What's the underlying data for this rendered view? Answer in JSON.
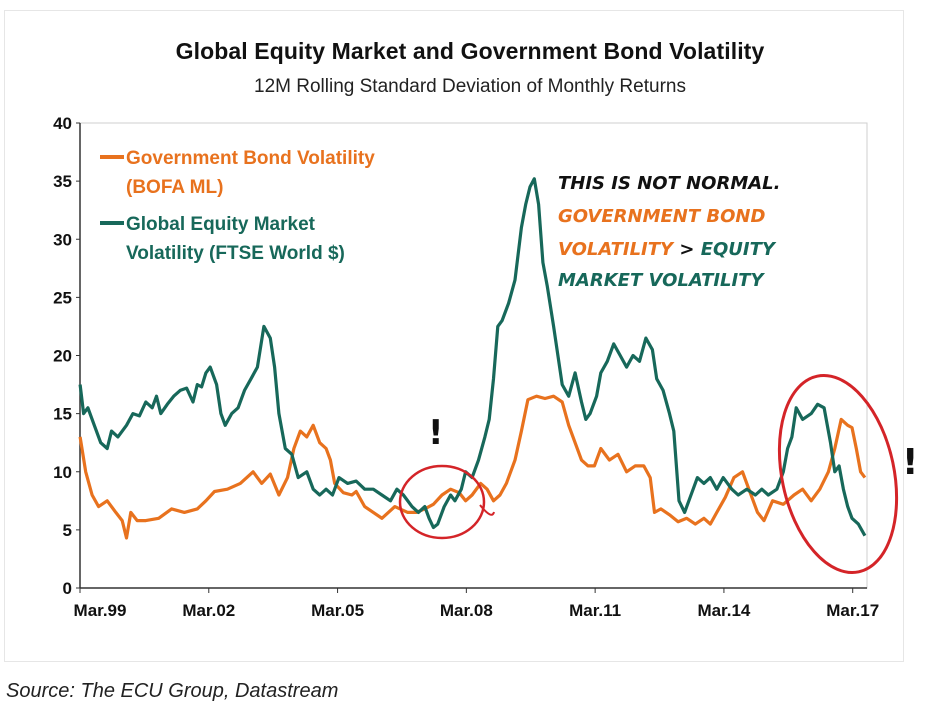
{
  "title": "Global Equity Market and Government Bond Volatility",
  "subtitle": "12M Rolling Standard Deviation of Monthly Returns",
  "source": "Source: The ECU Group,  Datastream",
  "colors": {
    "bond": "#e8721e",
    "equity": "#17685a",
    "annotation_red": "#d42428"
  },
  "legend": {
    "bond_line1": "Government Bond Volatility",
    "bond_line2": "(BOFA ML)",
    "equity_line1": "Global Equity Market",
    "equity_line2": "Volatility (FTSE World $)"
  },
  "annotation": {
    "line1": "THIS IS NOT NORMAL.",
    "line2": "GOVERNMENT BOND",
    "line3a": "VOLATILITY",
    "line3b": " > ",
    "line3c": "EQUITY",
    "line4": "MARKET VOLATILITY",
    "exclaim": "!"
  },
  "chart_data": {
    "type": "line",
    "x_tick_labels": [
      "Mar.99",
      "Mar.02",
      "Mar.05",
      "Mar.08",
      "Mar.11",
      "Mar.14",
      "Mar.17"
    ],
    "x_ticks": [
      1999.167,
      2002.167,
      2005.167,
      2008.167,
      2011.167,
      2014.167,
      2017.167
    ],
    "xlim": [
      1999.167,
      2017.5
    ],
    "ylim": [
      0,
      40
    ],
    "y_ticks": [
      0,
      5,
      10,
      15,
      20,
      25,
      30,
      35,
      40
    ],
    "grid": false,
    "legend_position": "top-left",
    "series": [
      {
        "name": "Government Bond Volatility (BOFA ML)",
        "key": "bond",
        "points": [
          [
            1999.17,
            13.0
          ],
          [
            1999.3,
            10.0
          ],
          [
            1999.45,
            8.0
          ],
          [
            1999.6,
            7.0
          ],
          [
            1999.8,
            7.5
          ],
          [
            2000.0,
            6.5
          ],
          [
            2000.15,
            5.8
          ],
          [
            2000.25,
            4.3
          ],
          [
            2000.35,
            6.5
          ],
          [
            2000.5,
            5.8
          ],
          [
            2000.7,
            5.8
          ],
          [
            2001.0,
            6.0
          ],
          [
            2001.3,
            6.8
          ],
          [
            2001.6,
            6.5
          ],
          [
            2001.9,
            6.8
          ],
          [
            2002.1,
            7.5
          ],
          [
            2002.3,
            8.3
          ],
          [
            2002.6,
            8.5
          ],
          [
            2002.9,
            9.0
          ],
          [
            2003.2,
            10.0
          ],
          [
            2003.4,
            9.0
          ],
          [
            2003.6,
            9.8
          ],
          [
            2003.8,
            8.0
          ],
          [
            2004.0,
            9.5
          ],
          [
            2004.15,
            12.0
          ],
          [
            2004.3,
            13.5
          ],
          [
            2004.45,
            13.0
          ],
          [
            2004.6,
            14.0
          ],
          [
            2004.75,
            12.5
          ],
          [
            2004.9,
            12.0
          ],
          [
            2005.0,
            11.0
          ],
          [
            2005.1,
            9.0
          ],
          [
            2005.3,
            8.2
          ],
          [
            2005.5,
            8.0
          ],
          [
            2005.6,
            8.3
          ],
          [
            2005.8,
            7.0
          ],
          [
            2006.0,
            6.5
          ],
          [
            2006.2,
            6.0
          ],
          [
            2006.5,
            7.0
          ],
          [
            2006.8,
            6.5
          ],
          [
            2007.0,
            6.5
          ],
          [
            2007.2,
            6.8
          ],
          [
            2007.4,
            7.2
          ],
          [
            2007.6,
            8.0
          ],
          [
            2007.8,
            8.5
          ],
          [
            2008.0,
            8.2
          ],
          [
            2008.15,
            7.5
          ],
          [
            2008.3,
            8.0
          ],
          [
            2008.5,
            9.0
          ],
          [
            2008.65,
            8.5
          ],
          [
            2008.8,
            7.5
          ],
          [
            2008.95,
            8.0
          ],
          [
            2009.1,
            9.0
          ],
          [
            2009.3,
            11.0
          ],
          [
            2009.45,
            13.5
          ],
          [
            2009.6,
            16.2
          ],
          [
            2009.8,
            16.5
          ],
          [
            2010.0,
            16.3
          ],
          [
            2010.2,
            16.5
          ],
          [
            2010.4,
            16.0
          ],
          [
            2010.55,
            14.0
          ],
          [
            2010.7,
            12.5
          ],
          [
            2010.85,
            11.0
          ],
          [
            2011.0,
            10.5
          ],
          [
            2011.15,
            10.5
          ],
          [
            2011.3,
            12.0
          ],
          [
            2011.5,
            11.0
          ],
          [
            2011.7,
            11.5
          ],
          [
            2011.9,
            10.0
          ],
          [
            2012.1,
            10.5
          ],
          [
            2012.3,
            10.5
          ],
          [
            2012.45,
            9.5
          ],
          [
            2012.55,
            6.5
          ],
          [
            2012.7,
            6.8
          ],
          [
            2012.9,
            6.3
          ],
          [
            2013.1,
            5.7
          ],
          [
            2013.3,
            6.0
          ],
          [
            2013.5,
            5.5
          ],
          [
            2013.7,
            6.0
          ],
          [
            2013.85,
            5.5
          ],
          [
            2014.0,
            6.5
          ],
          [
            2014.2,
            7.8
          ],
          [
            2014.4,
            9.5
          ],
          [
            2014.6,
            10.0
          ],
          [
            2014.75,
            8.5
          ],
          [
            2014.95,
            6.5
          ],
          [
            2015.1,
            5.8
          ],
          [
            2015.3,
            7.5
          ],
          [
            2015.55,
            7.2
          ],
          [
            2015.8,
            8.0
          ],
          [
            2016.0,
            8.5
          ],
          [
            2016.2,
            7.5
          ],
          [
            2016.4,
            8.5
          ],
          [
            2016.6,
            10.0
          ],
          [
            2016.75,
            12.0
          ],
          [
            2016.9,
            14.5
          ],
          [
            2017.05,
            14.0
          ],
          [
            2017.15,
            13.8
          ],
          [
            2017.25,
            12.0
          ],
          [
            2017.35,
            10.0
          ],
          [
            2017.45,
            9.5
          ]
        ]
      },
      {
        "name": "Global Equity Market Volatility (FTSE World $)",
        "key": "equity",
        "points": [
          [
            1999.17,
            17.5
          ],
          [
            1999.25,
            15.0
          ],
          [
            1999.35,
            15.5
          ],
          [
            1999.5,
            14.0
          ],
          [
            1999.65,
            12.5
          ],
          [
            1999.8,
            12.0
          ],
          [
            1999.9,
            13.5
          ],
          [
            2000.05,
            13.0
          ],
          [
            2000.25,
            14.0
          ],
          [
            2000.4,
            15.0
          ],
          [
            2000.55,
            14.8
          ],
          [
            2000.7,
            16.0
          ],
          [
            2000.85,
            15.5
          ],
          [
            2000.95,
            16.5
          ],
          [
            2001.05,
            15.0
          ],
          [
            2001.2,
            15.8
          ],
          [
            2001.35,
            16.5
          ],
          [
            2001.5,
            17.0
          ],
          [
            2001.65,
            17.2
          ],
          [
            2001.8,
            16.0
          ],
          [
            2001.9,
            17.5
          ],
          [
            2002.0,
            17.3
          ],
          [
            2002.1,
            18.5
          ],
          [
            2002.2,
            19.0
          ],
          [
            2002.35,
            17.5
          ],
          [
            2002.45,
            15.0
          ],
          [
            2002.55,
            14.0
          ],
          [
            2002.7,
            15.0
          ],
          [
            2002.85,
            15.5
          ],
          [
            2003.0,
            17.0
          ],
          [
            2003.15,
            18.0
          ],
          [
            2003.3,
            19.0
          ],
          [
            2003.45,
            22.5
          ],
          [
            2003.6,
            21.5
          ],
          [
            2003.7,
            19.0
          ],
          [
            2003.8,
            15.0
          ],
          [
            2003.95,
            12.0
          ],
          [
            2004.1,
            11.5
          ],
          [
            2004.25,
            9.5
          ],
          [
            2004.45,
            10.0
          ],
          [
            2004.6,
            8.5
          ],
          [
            2004.75,
            8.0
          ],
          [
            2004.9,
            8.5
          ],
          [
            2005.05,
            8.0
          ],
          [
            2005.2,
            9.5
          ],
          [
            2005.4,
            9.0
          ],
          [
            2005.6,
            9.2
          ],
          [
            2005.8,
            8.5
          ],
          [
            2006.0,
            8.5
          ],
          [
            2006.2,
            8.0
          ],
          [
            2006.4,
            7.5
          ],
          [
            2006.55,
            8.5
          ],
          [
            2006.7,
            8.0
          ],
          [
            2006.9,
            7.0
          ],
          [
            2007.05,
            6.5
          ],
          [
            2007.2,
            7.0
          ],
          [
            2007.3,
            6.0
          ],
          [
            2007.4,
            5.2
          ],
          [
            2007.5,
            5.5
          ],
          [
            2007.65,
            7.0
          ],
          [
            2007.8,
            8.0
          ],
          [
            2007.9,
            7.5
          ],
          [
            2008.05,
            8.5
          ],
          [
            2008.15,
            10.0
          ],
          [
            2008.3,
            9.5
          ],
          [
            2008.45,
            11.0
          ],
          [
            2008.6,
            13.0
          ],
          [
            2008.7,
            14.5
          ],
          [
            2008.8,
            18.0
          ],
          [
            2008.9,
            22.5
          ],
          [
            2009.0,
            23.0
          ],
          [
            2009.15,
            24.5
          ],
          [
            2009.3,
            26.5
          ],
          [
            2009.45,
            31.0
          ],
          [
            2009.55,
            33.0
          ],
          [
            2009.65,
            34.5
          ],
          [
            2009.75,
            35.2
          ],
          [
            2009.85,
            33.0
          ],
          [
            2009.95,
            28.0
          ],
          [
            2010.05,
            26.0
          ],
          [
            2010.2,
            22.5
          ],
          [
            2010.4,
            17.5
          ],
          [
            2010.55,
            16.5
          ],
          [
            2010.7,
            18.5
          ],
          [
            2010.85,
            16.0
          ],
          [
            2010.95,
            14.5
          ],
          [
            2011.05,
            15.0
          ],
          [
            2011.2,
            16.5
          ],
          [
            2011.3,
            18.5
          ],
          [
            2011.45,
            19.5
          ],
          [
            2011.6,
            21.0
          ],
          [
            2011.75,
            20.0
          ],
          [
            2011.9,
            19.0
          ],
          [
            2012.05,
            20.0
          ],
          [
            2012.2,
            19.5
          ],
          [
            2012.35,
            21.5
          ],
          [
            2012.5,
            20.5
          ],
          [
            2012.6,
            18.0
          ],
          [
            2012.75,
            17.0
          ],
          [
            2012.9,
            15.0
          ],
          [
            2013.0,
            13.5
          ],
          [
            2013.12,
            7.5
          ],
          [
            2013.25,
            6.5
          ],
          [
            2013.4,
            8.0
          ],
          [
            2013.55,
            9.5
          ],
          [
            2013.7,
            9.0
          ],
          [
            2013.85,
            9.5
          ],
          [
            2014.0,
            8.5
          ],
          [
            2014.15,
            9.5
          ],
          [
            2014.35,
            8.5
          ],
          [
            2014.5,
            8.0
          ],
          [
            2014.7,
            8.5
          ],
          [
            2014.9,
            8.0
          ],
          [
            2015.05,
            8.5
          ],
          [
            2015.2,
            8.0
          ],
          [
            2015.4,
            8.5
          ],
          [
            2015.55,
            10.0
          ],
          [
            2015.65,
            12.0
          ],
          [
            2015.75,
            13.0
          ],
          [
            2015.85,
            15.5
          ],
          [
            2016.0,
            14.5
          ],
          [
            2016.2,
            15.0
          ],
          [
            2016.35,
            15.8
          ],
          [
            2016.5,
            15.5
          ],
          [
            2016.65,
            12.5
          ],
          [
            2016.75,
            10.0
          ],
          [
            2016.85,
            10.5
          ],
          [
            2016.95,
            8.5
          ],
          [
            2017.05,
            7.0
          ],
          [
            2017.15,
            6.0
          ],
          [
            2017.3,
            5.5
          ],
          [
            2017.45,
            4.5
          ]
        ]
      }
    ]
  }
}
